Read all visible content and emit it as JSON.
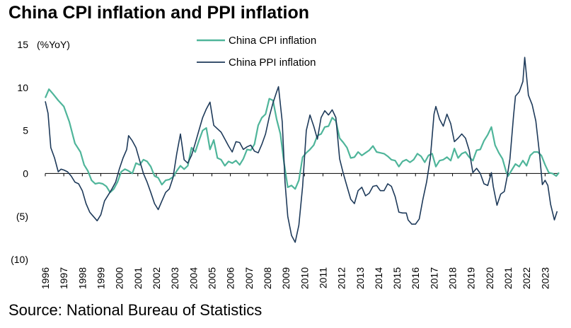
{
  "title": "China CPI inflation and PPI inflation",
  "source": "Source: National Bureau of Statistics",
  "colors": {
    "cpi": "#4fb59a",
    "ppi": "#1e3a5a",
    "axis": "#000000"
  },
  "chart_data": {
    "type": "line",
    "ylabel": "(%YoY)",
    "ylim": [
      -10,
      15
    ],
    "yticks": [
      15,
      10,
      5,
      0,
      -5,
      -10
    ],
    "ytick_labels": [
      "15",
      "10",
      "5",
      "0",
      "(5)",
      "(10)"
    ],
    "xlim": [
      1996,
      2023.75
    ],
    "xtick_labels": [
      "1996",
      "1997",
      "1998",
      "1999",
      "2000",
      "2001",
      "2002",
      "2003",
      "2004",
      "2005",
      "2006",
      "2007",
      "2008",
      "2009",
      "2010",
      "2011",
      "2012",
      "2013",
      "2014",
      "2015",
      "2016",
      "2017",
      "2018",
      "2019",
      "2020",
      "2021",
      "2022",
      "2023"
    ],
    "legend": "top-center",
    "grid": false,
    "series": [
      {
        "name": "China CPI inflation",
        "color": "#4fb59a",
        "points": [
          [
            1996.0,
            8.8
          ],
          [
            1996.2,
            9.8
          ],
          [
            1996.4,
            9.3
          ],
          [
            1996.7,
            8.5
          ],
          [
            1997.0,
            7.8
          ],
          [
            1997.3,
            6.0
          ],
          [
            1997.6,
            3.5
          ],
          [
            1997.9,
            2.5
          ],
          [
            1998.1,
            1.0
          ],
          [
            1998.3,
            0.3
          ],
          [
            1998.5,
            -0.8
          ],
          [
            1998.7,
            -1.2
          ],
          [
            1998.9,
            -1.1
          ],
          [
            1999.1,
            -1.2
          ],
          [
            1999.3,
            -1.5
          ],
          [
            1999.5,
            -2.2
          ],
          [
            1999.7,
            -1.8
          ],
          [
            1999.9,
            -1.0
          ],
          [
            2000.1,
            0.2
          ],
          [
            2000.3,
            0.5
          ],
          [
            2000.5,
            0.3
          ],
          [
            2000.7,
            0.0
          ],
          [
            2000.9,
            1.2
          ],
          [
            2001.1,
            1.0
          ],
          [
            2001.3,
            1.6
          ],
          [
            2001.5,
            1.4
          ],
          [
            2001.7,
            0.8
          ],
          [
            2001.9,
            -0.3
          ],
          [
            2002.1,
            -0.5
          ],
          [
            2002.3,
            -1.3
          ],
          [
            2002.5,
            -0.8
          ],
          [
            2002.7,
            -0.7
          ],
          [
            2002.9,
            -0.4
          ],
          [
            2003.1,
            0.3
          ],
          [
            2003.3,
            0.9
          ],
          [
            2003.5,
            0.5
          ],
          [
            2003.7,
            0.9
          ],
          [
            2003.9,
            3.0
          ],
          [
            2004.1,
            2.5
          ],
          [
            2004.3,
            3.8
          ],
          [
            2004.5,
            5.0
          ],
          [
            2004.7,
            5.3
          ],
          [
            2004.9,
            2.8
          ],
          [
            2005.1,
            3.9
          ],
          [
            2005.3,
            1.8
          ],
          [
            2005.5,
            1.6
          ],
          [
            2005.7,
            0.9
          ],
          [
            2005.9,
            1.4
          ],
          [
            2006.1,
            1.2
          ],
          [
            2006.3,
            1.5
          ],
          [
            2006.5,
            1.0
          ],
          [
            2006.7,
            1.7
          ],
          [
            2006.9,
            2.8
          ],
          [
            2007.1,
            2.7
          ],
          [
            2007.3,
            3.4
          ],
          [
            2007.5,
            5.6
          ],
          [
            2007.7,
            6.5
          ],
          [
            2007.9,
            6.9
          ],
          [
            2008.1,
            8.7
          ],
          [
            2008.3,
            8.5
          ],
          [
            2008.5,
            6.3
          ],
          [
            2008.7,
            4.6
          ],
          [
            2008.9,
            1.2
          ],
          [
            2009.1,
            -1.6
          ],
          [
            2009.3,
            -1.4
          ],
          [
            2009.5,
            -1.8
          ],
          [
            2009.7,
            -0.8
          ],
          [
            2009.9,
            1.9
          ],
          [
            2010.1,
            2.4
          ],
          [
            2010.3,
            2.8
          ],
          [
            2010.5,
            3.3
          ],
          [
            2010.7,
            4.4
          ],
          [
            2010.9,
            4.6
          ],
          [
            2011.1,
            5.4
          ],
          [
            2011.3,
            5.5
          ],
          [
            2011.5,
            6.5
          ],
          [
            2011.7,
            6.1
          ],
          [
            2011.9,
            4.1
          ],
          [
            2012.1,
            3.6
          ],
          [
            2012.3,
            3.0
          ],
          [
            2012.5,
            1.8
          ],
          [
            2012.7,
            1.9
          ],
          [
            2012.9,
            2.5
          ],
          [
            2013.1,
            2.1
          ],
          [
            2013.3,
            2.4
          ],
          [
            2013.5,
            2.7
          ],
          [
            2013.7,
            3.2
          ],
          [
            2013.9,
            2.5
          ],
          [
            2014.1,
            2.4
          ],
          [
            2014.3,
            2.3
          ],
          [
            2014.5,
            2.0
          ],
          [
            2014.7,
            1.6
          ],
          [
            2014.9,
            1.5
          ],
          [
            2015.1,
            0.8
          ],
          [
            2015.3,
            1.4
          ],
          [
            2015.5,
            1.6
          ],
          [
            2015.7,
            1.3
          ],
          [
            2015.9,
            1.6
          ],
          [
            2016.1,
            2.3
          ],
          [
            2016.3,
            2.0
          ],
          [
            2016.5,
            1.3
          ],
          [
            2016.7,
            2.1
          ],
          [
            2016.9,
            2.3
          ],
          [
            2017.1,
            0.8
          ],
          [
            2017.3,
            1.5
          ],
          [
            2017.5,
            1.6
          ],
          [
            2017.7,
            1.9
          ],
          [
            2017.9,
            1.5
          ],
          [
            2018.1,
            2.9
          ],
          [
            2018.3,
            1.8
          ],
          [
            2018.5,
            2.3
          ],
          [
            2018.7,
            2.5
          ],
          [
            2018.9,
            1.9
          ],
          [
            2019.1,
            1.5
          ],
          [
            2019.3,
            2.7
          ],
          [
            2019.5,
            2.8
          ],
          [
            2019.7,
            3.8
          ],
          [
            2019.9,
            4.5
          ],
          [
            2020.1,
            5.4
          ],
          [
            2020.3,
            3.3
          ],
          [
            2020.5,
            2.4
          ],
          [
            2020.7,
            1.7
          ],
          [
            2020.9,
            0.2
          ],
          [
            2021.0,
            -0.3
          ],
          [
            2021.2,
            0.4
          ],
          [
            2021.4,
            1.1
          ],
          [
            2021.6,
            0.8
          ],
          [
            2021.8,
            1.5
          ],
          [
            2022.0,
            0.9
          ],
          [
            2022.2,
            2.1
          ],
          [
            2022.4,
            2.5
          ],
          [
            2022.6,
            2.5
          ],
          [
            2022.8,
            2.1
          ],
          [
            2023.0,
            1.0
          ],
          [
            2023.2,
            0.1
          ],
          [
            2023.4,
            0.0
          ],
          [
            2023.6,
            -0.3
          ],
          [
            2023.75,
            0.1
          ]
        ]
      },
      {
        "name": "China PPI inflation",
        "color": "#1e3a5a",
        "points": [
          [
            1996.0,
            8.4
          ],
          [
            1996.15,
            7.0
          ],
          [
            1996.3,
            3.0
          ],
          [
            1996.5,
            1.8
          ],
          [
            1996.7,
            0.2
          ],
          [
            1996.85,
            0.5
          ],
          [
            1997.0,
            0.4
          ],
          [
            1997.2,
            0.2
          ],
          [
            1997.4,
            -0.3
          ],
          [
            1997.6,
            -1.0
          ],
          [
            1997.8,
            -1.2
          ],
          [
            1998.0,
            -2.0
          ],
          [
            1998.2,
            -3.5
          ],
          [
            1998.4,
            -4.5
          ],
          [
            1998.6,
            -5.0
          ],
          [
            1998.8,
            -5.5
          ],
          [
            1999.0,
            -4.8
          ],
          [
            1999.2,
            -3.2
          ],
          [
            1999.4,
            -2.5
          ],
          [
            1999.6,
            -1.8
          ],
          [
            1999.8,
            -1.0
          ],
          [
            2000.0,
            0.5
          ],
          [
            2000.2,
            1.8
          ],
          [
            2000.4,
            2.8
          ],
          [
            2000.5,
            4.4
          ],
          [
            2000.7,
            3.8
          ],
          [
            2000.9,
            3.0
          ],
          [
            2001.1,
            1.5
          ],
          [
            2001.3,
            0.0
          ],
          [
            2001.5,
            -1.0
          ],
          [
            2001.7,
            -2.2
          ],
          [
            2001.9,
            -3.5
          ],
          [
            2002.1,
            -4.2
          ],
          [
            2002.3,
            -3.2
          ],
          [
            2002.5,
            -2.2
          ],
          [
            2002.7,
            -1.8
          ],
          [
            2002.9,
            -0.5
          ],
          [
            2003.1,
            2.3
          ],
          [
            2003.3,
            4.6
          ],
          [
            2003.5,
            1.6
          ],
          [
            2003.7,
            1.2
          ],
          [
            2003.9,
            2.1
          ],
          [
            2004.1,
            3.5
          ],
          [
            2004.3,
            5.0
          ],
          [
            2004.5,
            6.5
          ],
          [
            2004.7,
            7.5
          ],
          [
            2004.9,
            8.3
          ],
          [
            2005.1,
            5.6
          ],
          [
            2005.3,
            5.2
          ],
          [
            2005.5,
            4.8
          ],
          [
            2005.7,
            4.0
          ],
          [
            2005.9,
            3.2
          ],
          [
            2006.1,
            2.5
          ],
          [
            2006.3,
            3.7
          ],
          [
            2006.5,
            3.6
          ],
          [
            2006.7,
            2.8
          ],
          [
            2006.9,
            3.1
          ],
          [
            2007.1,
            3.3
          ],
          [
            2007.3,
            2.6
          ],
          [
            2007.5,
            2.4
          ],
          [
            2007.7,
            3.4
          ],
          [
            2007.9,
            4.6
          ],
          [
            2008.1,
            6.6
          ],
          [
            2008.3,
            8.2
          ],
          [
            2008.5,
            9.5
          ],
          [
            2008.6,
            10.1
          ],
          [
            2008.8,
            6.0
          ],
          [
            2008.95,
            -1.0
          ],
          [
            2009.1,
            -5.0
          ],
          [
            2009.3,
            -7.2
          ],
          [
            2009.5,
            -8.0
          ],
          [
            2009.7,
            -6.0
          ],
          [
            2009.9,
            -1.5
          ],
          [
            2010.1,
            5.0
          ],
          [
            2010.3,
            6.8
          ],
          [
            2010.5,
            5.5
          ],
          [
            2010.7,
            4.0
          ],
          [
            2010.9,
            6.5
          ],
          [
            2011.1,
            7.3
          ],
          [
            2011.3,
            6.8
          ],
          [
            2011.5,
            7.4
          ],
          [
            2011.7,
            6.5
          ],
          [
            2011.9,
            1.7
          ],
          [
            2012.1,
            0.0
          ],
          [
            2012.3,
            -1.5
          ],
          [
            2012.5,
            -3.0
          ],
          [
            2012.7,
            -3.5
          ],
          [
            2012.9,
            -2.0
          ],
          [
            2013.1,
            -1.6
          ],
          [
            2013.3,
            -2.6
          ],
          [
            2013.5,
            -2.3
          ],
          [
            2013.7,
            -1.5
          ],
          [
            2013.9,
            -1.4
          ],
          [
            2014.1,
            -2.0
          ],
          [
            2014.3,
            -2.0
          ],
          [
            2014.5,
            -1.2
          ],
          [
            2014.7,
            -1.5
          ],
          [
            2014.9,
            -2.7
          ],
          [
            2015.1,
            -4.5
          ],
          [
            2015.3,
            -4.6
          ],
          [
            2015.5,
            -4.6
          ],
          [
            2015.6,
            -5.4
          ],
          [
            2015.8,
            -5.9
          ],
          [
            2016.0,
            -5.9
          ],
          [
            2016.2,
            -5.3
          ],
          [
            2016.4,
            -3.0
          ],
          [
            2016.6,
            -1.0
          ],
          [
            2016.8,
            1.8
          ],
          [
            2017.0,
            6.9
          ],
          [
            2017.1,
            7.8
          ],
          [
            2017.3,
            6.3
          ],
          [
            2017.5,
            5.5
          ],
          [
            2017.7,
            6.9
          ],
          [
            2017.9,
            5.8
          ],
          [
            2018.1,
            3.7
          ],
          [
            2018.3,
            4.1
          ],
          [
            2018.5,
            4.6
          ],
          [
            2018.7,
            4.1
          ],
          [
            2018.9,
            2.7
          ],
          [
            2019.1,
            0.1
          ],
          [
            2019.3,
            0.6
          ],
          [
            2019.5,
            0.0
          ],
          [
            2019.7,
            -1.2
          ],
          [
            2019.9,
            -1.4
          ],
          [
            2020.1,
            0.1
          ],
          [
            2020.2,
            -1.5
          ],
          [
            2020.4,
            -3.7
          ],
          [
            2020.6,
            -2.4
          ],
          [
            2020.8,
            -2.1
          ],
          [
            2020.95,
            -0.4
          ],
          [
            2021.1,
            1.7
          ],
          [
            2021.3,
            6.8
          ],
          [
            2021.4,
            9.0
          ],
          [
            2021.6,
            9.5
          ],
          [
            2021.8,
            10.7
          ],
          [
            2021.9,
            13.5
          ],
          [
            2022.1,
            9.1
          ],
          [
            2022.3,
            8.0
          ],
          [
            2022.5,
            6.1
          ],
          [
            2022.7,
            2.3
          ],
          [
            2022.85,
            -1.3
          ],
          [
            2023.0,
            -0.8
          ],
          [
            2023.15,
            -1.4
          ],
          [
            2023.3,
            -3.6
          ],
          [
            2023.5,
            -5.4
          ],
          [
            2023.65,
            -4.4
          ]
        ]
      }
    ]
  }
}
